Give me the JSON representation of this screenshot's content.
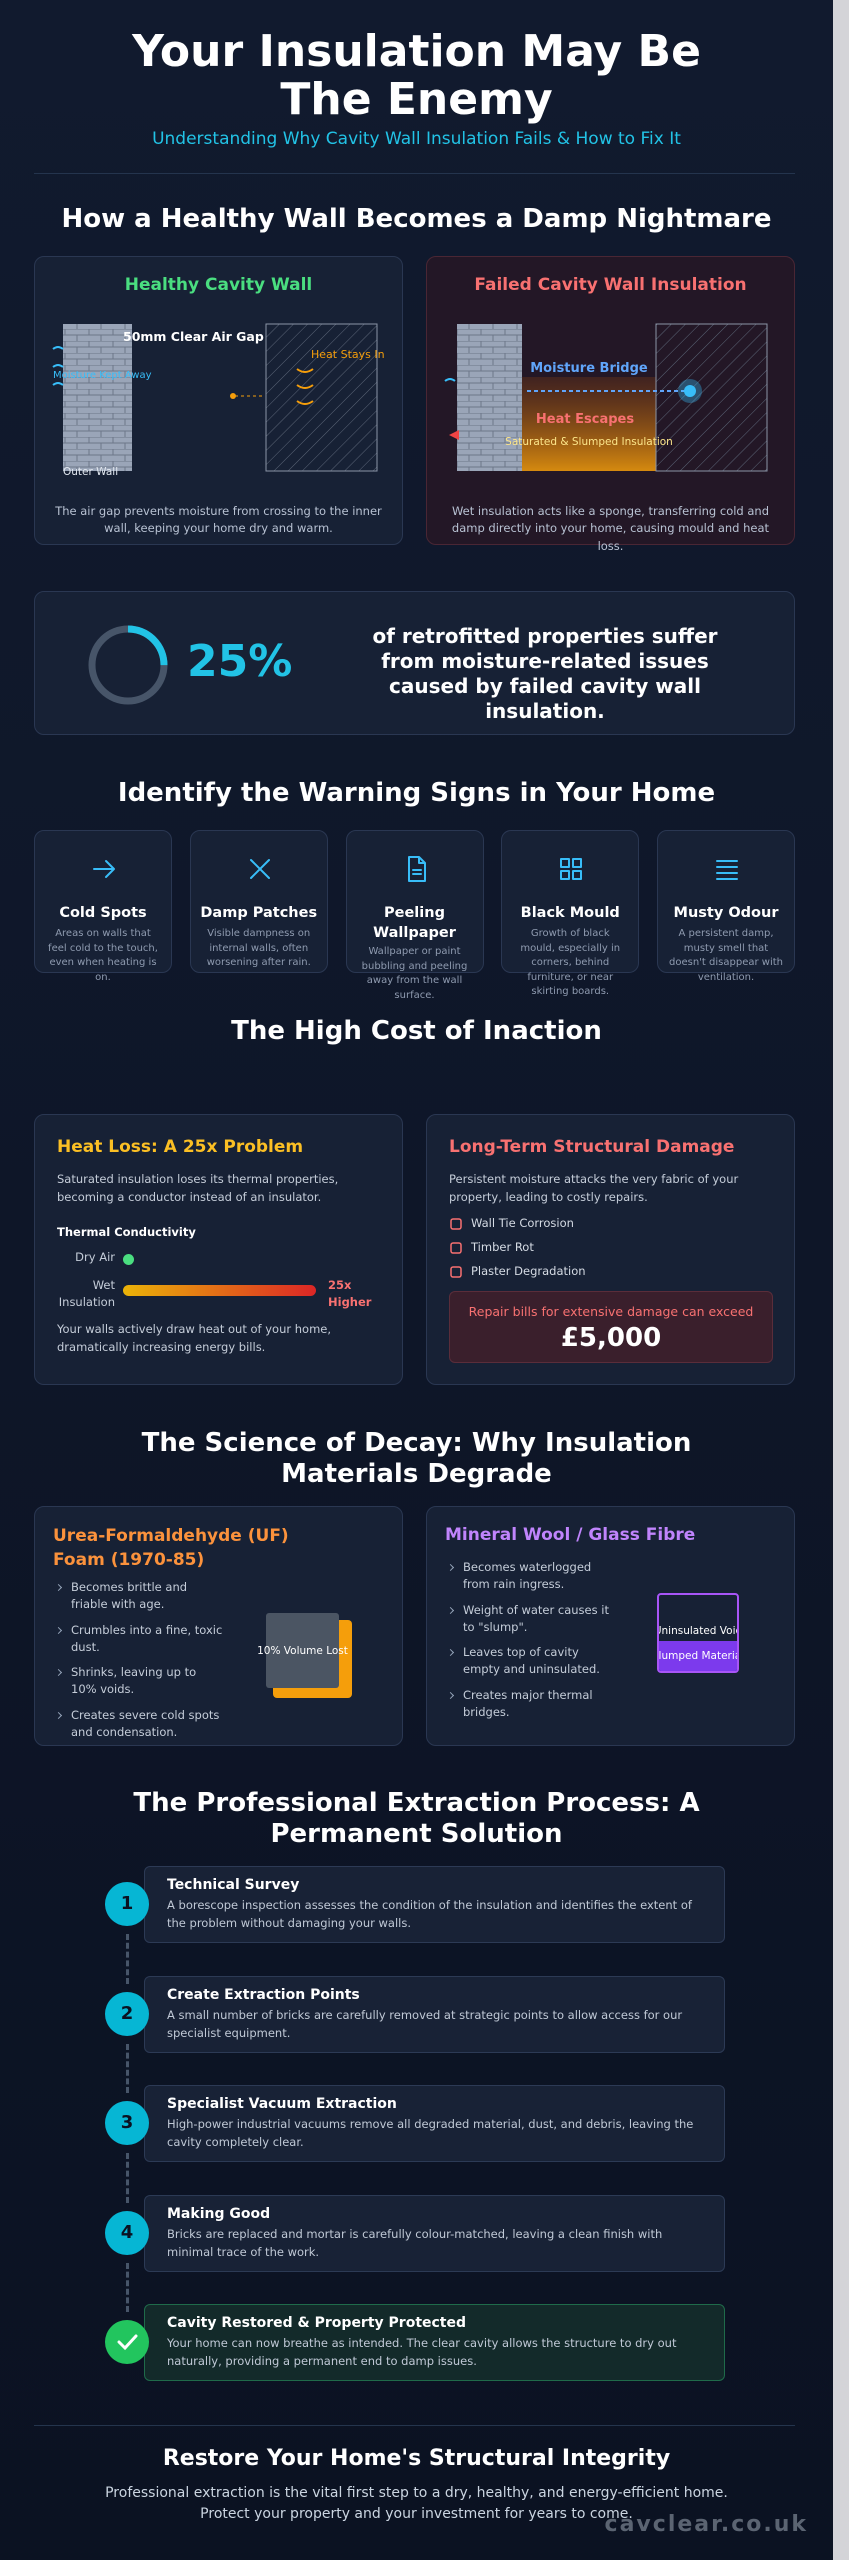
{
  "header": {
    "title": "Your Insulation May Be The Enemy",
    "subtitle": "Understanding Why Cavity Wall Insulation Fails & How to Fix It"
  },
  "walls": {
    "heading": "How a Healthy Wall Becomes a Damp Nightmare",
    "healthy": {
      "title": "Healthy Cavity Wall",
      "gap": "50mm Clear Air Gap",
      "heat": "Heat Stays In",
      "outer": "Outer Wall",
      "moisture": "Moisture Kept Away",
      "caption": "The air gap prevents moisture from crossing to the inner wall, keeping your home dry and warm."
    },
    "failed": {
      "title": "Failed Cavity Wall Insulation",
      "bridge": "Moisture Bridge",
      "heat": "Heat Escapes",
      "insulation": "Saturated & Slumped Insulation",
      "caption": "Wet insulation acts like a sponge, transferring cold and damp directly into your home, causing mould and heat loss."
    }
  },
  "stat": {
    "value": 25,
    "label": "25%",
    "text": "of retrofitted properties suffer from moisture-related issues caused by failed cavity wall insulation."
  },
  "signs": {
    "heading": "Identify the Warning Signs in Your Home",
    "items": [
      {
        "title": "Cold Spots",
        "text": "Areas on walls that feel cold to the touch, even when heating is on."
      },
      {
        "title": "Damp Patches",
        "text": "Visible dampness on internal walls, often worsening after rain."
      },
      {
        "title": "Peeling Wallpaper",
        "text": "Wallpaper or paint bubbling and peeling away from the wall surface."
      },
      {
        "title": "Black Mould",
        "text": "Growth of black mould, especially in corners, behind furniture, or near skirting boards."
      },
      {
        "title": "Musty Odour",
        "text": "A persistent damp, musty smell that doesn't disappear with ventilation."
      }
    ]
  },
  "cost": {
    "heading": "The High Cost of Inaction",
    "heat": {
      "title": "Heat Loss: A 25x Problem",
      "text": "Saturated insulation loses its thermal properties, becoming a conductor instead of an insulator.",
      "chart_title": "Thermal Conductivity",
      "dry": "Dry Air",
      "wet": "Wet Insulation",
      "wet_label": "25x Higher",
      "note": "Your walls actively draw heat out of your home, dramatically increasing energy bills."
    },
    "damage": {
      "title": "Long-Term Structural Damage",
      "text": "Persistent moisture attacks the very fabric of your property, leading to costly repairs.",
      "items": [
        "Wall Tie Corrosion",
        "Timber Rot",
        "Plaster Degradation"
      ],
      "callout": "Repair bills for extensive damage can exceed",
      "amount": "£5,000"
    }
  },
  "science": {
    "heading": "The Science of Decay: Why Insulation Materials Degrade",
    "uf": {
      "title": "Urea-Formaldehyde (UF) Foam (1970-85)",
      "bullets": [
        "Becomes brittle and friable with age.",
        "Crumbles into a fine, toxic dust.",
        "Shrinks, leaving up to 10% voids.",
        "Creates severe cold spots and condensation."
      ],
      "box": "10% Volume Lost"
    },
    "wool": {
      "title": "Mineral Wool / Glass Fibre",
      "bullets": [
        "Becomes waterlogged from rain ingress.",
        "Weight of water causes it to \"slump\".",
        "Leaves top of cavity empty and uninsulated.",
        "Creates major thermal bridges."
      ],
      "void": "Uninsulated Void",
      "slumped": "Slumped Material"
    }
  },
  "process": {
    "heading": "The Professional Extraction Process: A Permanent Solution",
    "steps": [
      {
        "marker": "1",
        "title": "Technical Survey",
        "text": "A borescope inspection assesses the condition of the insulation and identifies the extent of the problem without damaging your walls."
      },
      {
        "marker": "2",
        "title": "Create Extraction Points",
        "text": "A small number of bricks are carefully removed at strategic points to allow access for our specialist equipment."
      },
      {
        "marker": "3",
        "title": "Specialist Vacuum Extraction",
        "text": "High-power industrial vacuums remove all degraded material, dust, and debris, leaving the cavity completely clear."
      },
      {
        "marker": "4",
        "title": "Making Good",
        "text": "Bricks are replaced and mortar is carefully colour-matched, leaving a clean finish with minimal trace of the work."
      },
      {
        "title": "Cavity Restored & Property Protected",
        "text": "Your home can now breathe as intended. The clear cavity allows the structure to dry out naturally, providing a permanent end to damp issues."
      }
    ]
  },
  "footer": {
    "heading": "Restore Your Home's Structural Integrity",
    "text": "Professional extraction is the vital first step to a dry, healthy, and energy-efficient home. Protect your property and your investment for years to come.",
    "brand": "cavclear.co.uk"
  }
}
